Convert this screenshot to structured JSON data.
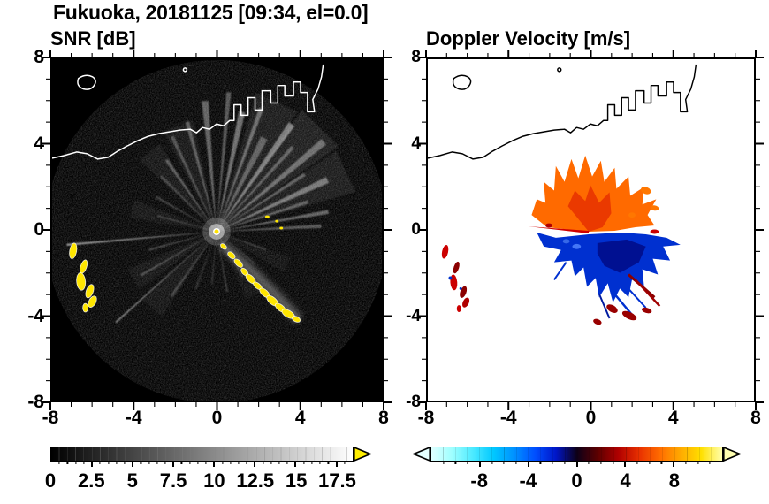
{
  "title": "Fukuoka, 20181125 [09:34, el=0.0]",
  "panels": [
    {
      "title": "SNR [dB]",
      "x_ticks": [
        "-8",
        "-4",
        "0",
        "4",
        "8"
      ],
      "y_ticks": [
        "8",
        "4",
        "0",
        "-4",
        "-8"
      ],
      "colorbar_ticks": [
        "0",
        "2.5",
        "5",
        "7.5",
        "10",
        "12.5",
        "15",
        "17.5"
      ]
    },
    {
      "title": "Doppler Velocity [m/s]",
      "x_ticks": [
        "-8",
        "-4",
        "0",
        "4",
        "8"
      ],
      "y_ticks": [
        "8",
        "4",
        "0",
        "-4",
        "-8"
      ],
      "colorbar_ticks": [
        "-8",
        "-4",
        "0",
        "4",
        "8"
      ]
    }
  ],
  "chart_data": [
    {
      "type": "heatmap",
      "title": "SNR [dB]",
      "xlim": [
        -8,
        8
      ],
      "ylim": [
        -8,
        8
      ],
      "x_ticks": [
        -8,
        -4,
        0,
        4,
        8
      ],
      "y_ticks": [
        -8,
        -4,
        0,
        4,
        8
      ],
      "tick_minor_interval": 1,
      "grid": false,
      "radar_location": [
        0,
        0
      ],
      "colorbar": {
        "units": "dB",
        "min": 0,
        "max": 18.5,
        "tick_values": [
          0,
          2.5,
          5,
          7.5,
          10,
          12.5,
          15,
          17.5
        ],
        "colors": [
          "#000000",
          "#ffffff"
        ],
        "over_arrow_color": "#ffee00"
      },
      "features": [
        "speckled noise floor on black background inside circular scan area",
        "bright radial beam streaks emanating from radar at (0,0), strongest toward NE, E and NW",
        "saturated (yellow, >17.5 dB) echo arc running from about (0,-1) southeast to (3.5,-4.5)",
        "isolated saturated echo cluster near (-7,-1.5) to (-6,-4.5)",
        "Fukuoka coastline and harbor piers drawn in white across the upper part of the map"
      ]
    },
    {
      "type": "heatmap",
      "title": "Doppler Velocity [m/s]",
      "xlim": [
        -8,
        8
      ],
      "ylim": [
        -8,
        8
      ],
      "x_ticks": [
        -8,
        -4,
        0,
        4,
        8
      ],
      "y_ticks": [
        -8,
        -4,
        0,
        4,
        8
      ],
      "tick_minor_interval": 1,
      "grid": false,
      "radar_location": [
        0,
        0
      ],
      "colorbar": {
        "units": "m/s",
        "min": -12,
        "max": 12,
        "tick_values": [
          -8,
          -4,
          0,
          4,
          8
        ],
        "colors": [
          "#e0ffff",
          "#9effff",
          "#4ceaff",
          "#00c8ff",
          "#0090ff",
          "#004eff",
          "#0016c8",
          "#0d0018",
          "#5c0000",
          "#b00000",
          "#e83000",
          "#ff6c00",
          "#ffaa00",
          "#ffe000",
          "#ffffb0"
        ],
        "under_arrow_color": "#e4ffff",
        "over_arrow_color": "#ffffb0"
      },
      "features": [
        "positive velocities (orange/red, about +2 to +8 m/s) in a spiky fan north and northwest of the radar",
        "negative velocities (blue/navy, about -2 to -8 m/s) south and east of the radar",
        "dark-red high-velocity spikes southeast of the radar near (1.5,-3) to (3,-4)",
        "small mixed red/blue echoes near (-7,-1.5) to (-6,-4.5)",
        "coastline drawn in black across the upper part of the map; white background elsewhere"
      ]
    }
  ]
}
